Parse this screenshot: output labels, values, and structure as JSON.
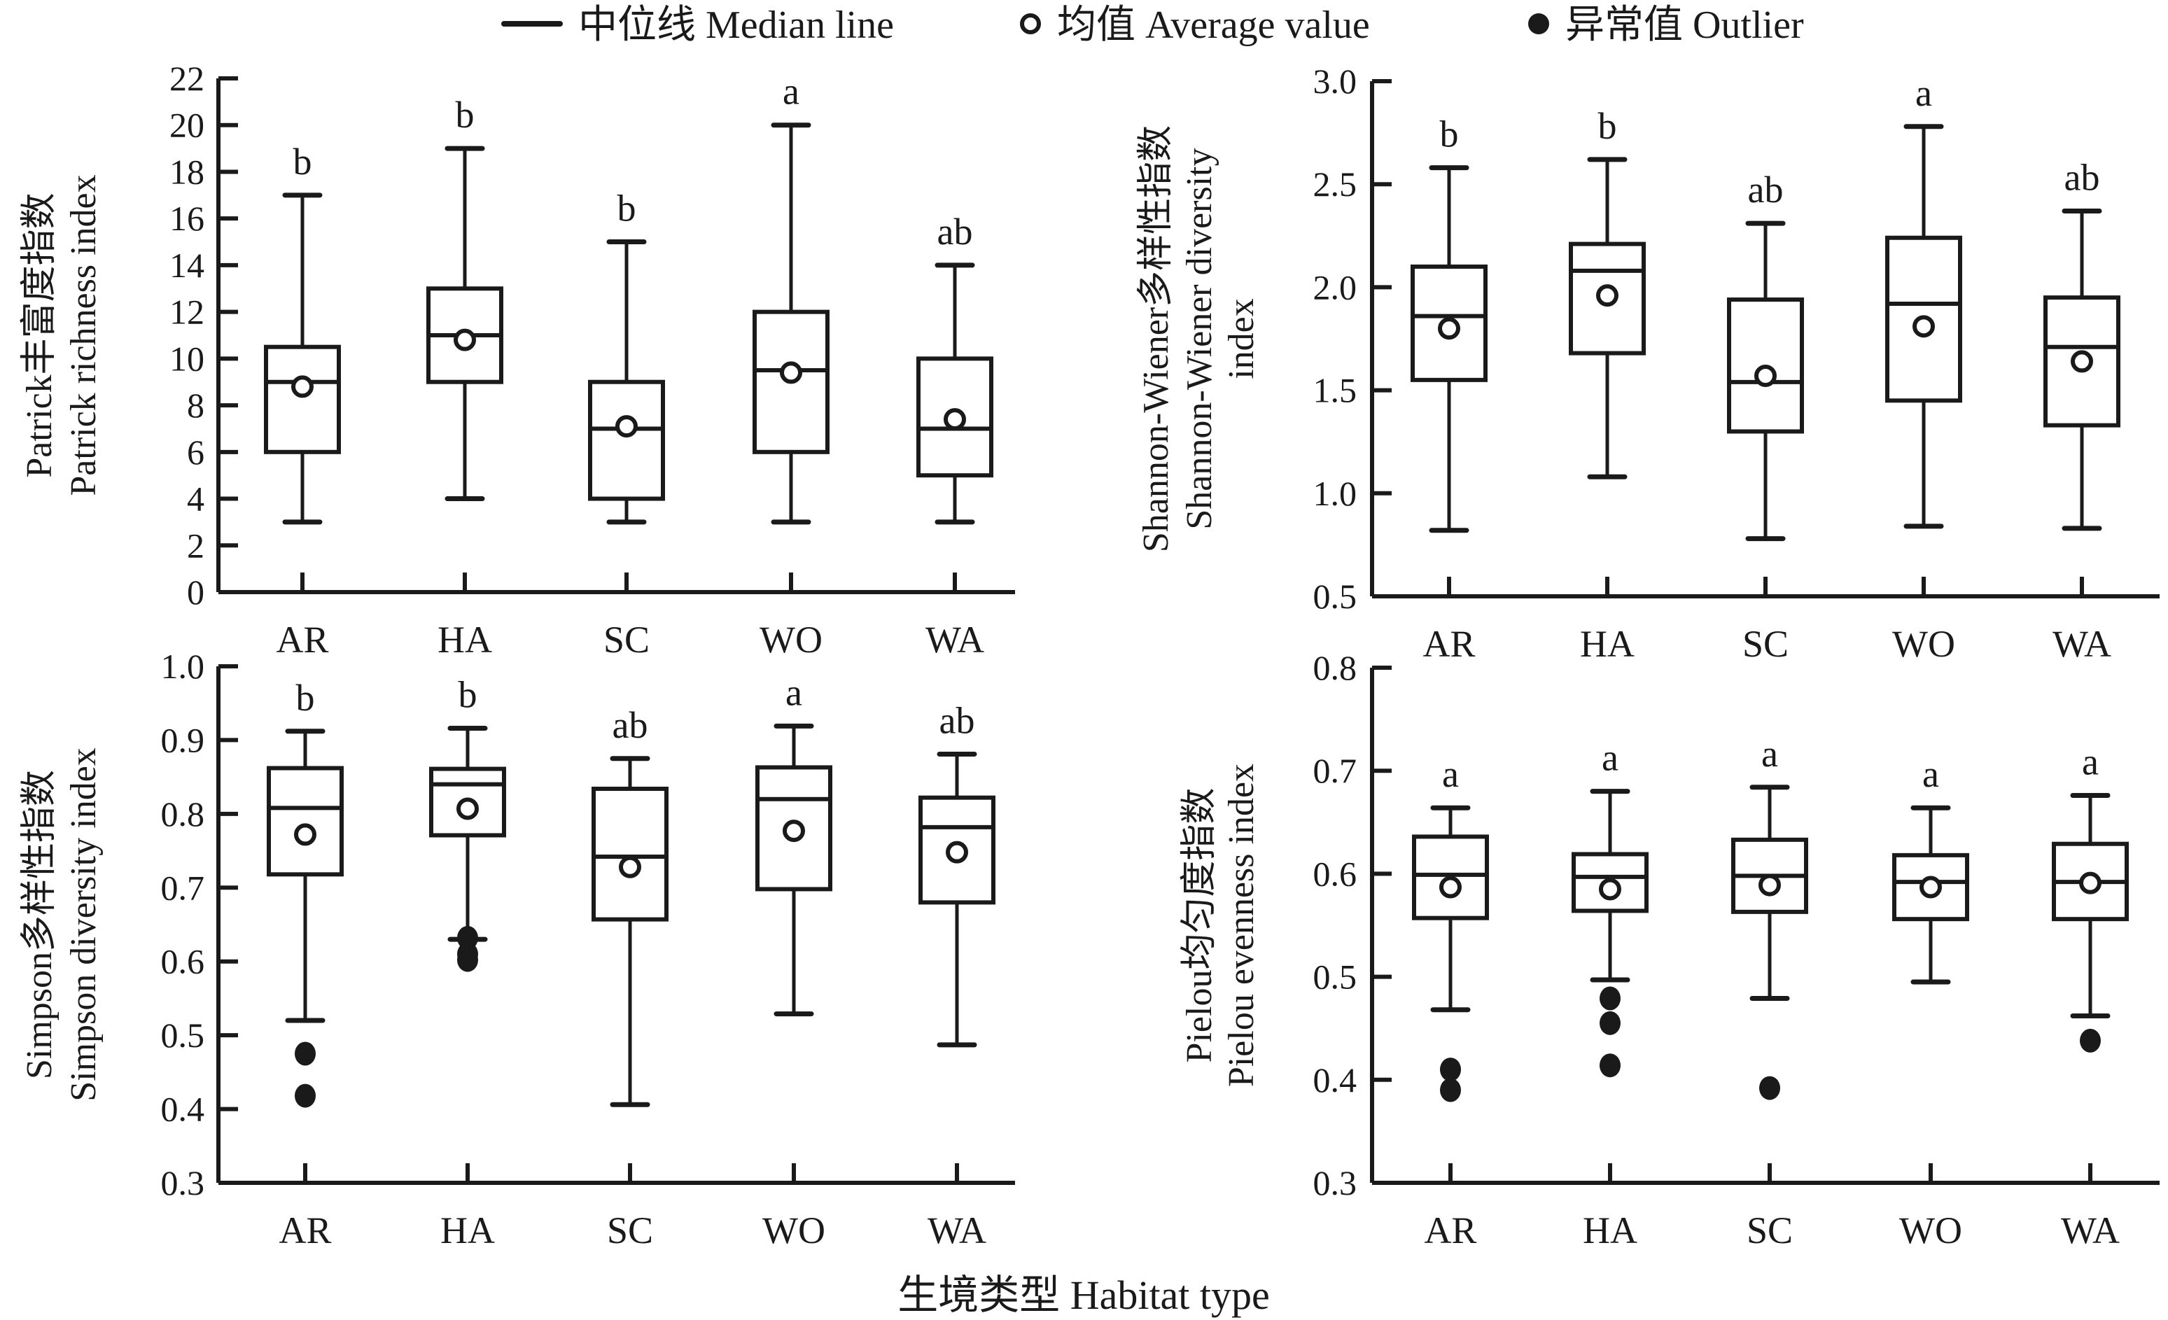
{
  "legend": {
    "median_label": "中位线 Median line",
    "mean_label": "均值 Average value",
    "outlier_label": "异常值 Outlier"
  },
  "x_title": "生境类型 Habitat type",
  "chart_data": [
    {
      "type": "box",
      "id": "patrick",
      "ylabel_cn": "Patrick丰富度指数",
      "ylabel_en": "Patrick richness index",
      "ylim": [
        0,
        22
      ],
      "yticks": [
        0,
        2,
        4,
        6,
        8,
        10,
        12,
        14,
        16,
        18,
        20,
        22
      ],
      "ytick_labels": [
        "0",
        "2",
        "4",
        "6",
        "8",
        "10",
        "12",
        "14",
        "16",
        "18",
        "20",
        "22"
      ],
      "categories": [
        "AR",
        "HA",
        "SC",
        "WO",
        "WA"
      ],
      "series": [
        {
          "category": "AR",
          "whisker_low": 3,
          "q1": 6,
          "median": 9,
          "q3": 10.5,
          "whisker_high": 17,
          "mean": 8.8,
          "outliers": [],
          "significance": "b"
        },
        {
          "category": "HA",
          "whisker_low": 4,
          "q1": 9,
          "median": 11,
          "q3": 13,
          "whisker_high": 19,
          "mean": 10.8,
          "outliers": [],
          "significance": "b"
        },
        {
          "category": "SC",
          "whisker_low": 3,
          "q1": 4,
          "median": 7,
          "q3": 9,
          "whisker_high": 15,
          "mean": 7.1,
          "outliers": [],
          "significance": "b"
        },
        {
          "category": "WO",
          "whisker_low": 3,
          "q1": 6,
          "median": 9.5,
          "q3": 12,
          "whisker_high": 20,
          "mean": 9.4,
          "outliers": [],
          "significance": "a"
        },
        {
          "category": "WA",
          "whisker_low": 3,
          "q1": 5,
          "median": 7,
          "q3": 10,
          "whisker_high": 14,
          "mean": 7.4,
          "outliers": [],
          "significance": "ab"
        }
      ]
    },
    {
      "type": "box",
      "id": "shannon",
      "ylabel_cn": "Shannon-Wiener多样性指数",
      "ylabel_en": "Shannon-Wiener diversity index",
      "ylim": [
        0.5,
        3.0
      ],
      "yticks": [
        0.5,
        1.0,
        1.5,
        2.0,
        2.5,
        3.0
      ],
      "ytick_labels": [
        "0.5",
        "1.0",
        "1.5",
        "2.0",
        "2.5",
        "3.0"
      ],
      "categories": [
        "AR",
        "HA",
        "SC",
        "WO",
        "WA"
      ],
      "series": [
        {
          "category": "AR",
          "whisker_low": 0.82,
          "q1": 1.55,
          "median": 1.86,
          "q3": 2.1,
          "whisker_high": 2.58,
          "mean": 1.8,
          "outliers": [],
          "significance": "b"
        },
        {
          "category": "HA",
          "whisker_low": 1.08,
          "q1": 1.68,
          "median": 2.08,
          "q3": 2.21,
          "whisker_high": 2.62,
          "mean": 1.96,
          "outliers": [],
          "significance": "b"
        },
        {
          "category": "SC",
          "whisker_low": 0.78,
          "q1": 1.3,
          "median": 1.54,
          "q3": 1.94,
          "whisker_high": 2.31,
          "mean": 1.57,
          "outliers": [],
          "significance": "ab"
        },
        {
          "category": "WO",
          "whisker_low": 0.84,
          "q1": 1.45,
          "median": 1.92,
          "q3": 2.24,
          "whisker_high": 2.78,
          "mean": 1.81,
          "outliers": [],
          "significance": "a"
        },
        {
          "category": "WA",
          "whisker_low": 0.83,
          "q1": 1.33,
          "median": 1.71,
          "q3": 1.95,
          "whisker_high": 2.37,
          "mean": 1.64,
          "outliers": [],
          "significance": "ab"
        }
      ]
    },
    {
      "type": "box",
      "id": "simpson",
      "ylabel_cn": "Simpson多样性指数",
      "ylabel_en": "Simpson diversity index",
      "ylim": [
        0.3,
        1.0
      ],
      "yticks": [
        0.3,
        0.4,
        0.5,
        0.6,
        0.7,
        0.8,
        0.9,
        1.0
      ],
      "ytick_labels": [
        "0.3",
        "0.4",
        "0.5",
        "0.6",
        "0.7",
        "0.8",
        "0.9",
        "1.0"
      ],
      "categories": [
        "AR",
        "HA",
        "SC",
        "WO",
        "WA"
      ],
      "series": [
        {
          "category": "AR",
          "whisker_low": 0.52,
          "q1": 0.718,
          "median": 0.808,
          "q3": 0.862,
          "whisker_high": 0.912,
          "mean": 0.772,
          "outliers": [
            0.475,
            0.418
          ],
          "significance": "b"
        },
        {
          "category": "HA",
          "whisker_low": 0.63,
          "q1": 0.771,
          "median": 0.84,
          "q3": 0.861,
          "whisker_high": 0.916,
          "mean": 0.807,
          "outliers": [
            0.632,
            0.61,
            0.602
          ],
          "significance": "b"
        },
        {
          "category": "SC",
          "whisker_low": 0.406,
          "q1": 0.657,
          "median": 0.742,
          "q3": 0.834,
          "whisker_high": 0.875,
          "mean": 0.728,
          "outliers": [],
          "significance": "ab"
        },
        {
          "category": "WO",
          "whisker_low": 0.529,
          "q1": 0.698,
          "median": 0.82,
          "q3": 0.863,
          "whisker_high": 0.919,
          "mean": 0.777,
          "outliers": [],
          "significance": "a"
        },
        {
          "category": "WA",
          "whisker_low": 0.487,
          "q1": 0.68,
          "median": 0.782,
          "q3": 0.822,
          "whisker_high": 0.881,
          "mean": 0.748,
          "outliers": [],
          "significance": "ab"
        }
      ]
    },
    {
      "type": "box",
      "id": "pielou",
      "ylabel_cn": "Pielou均匀度指数",
      "ylabel_en": "Pielou evenness index",
      "ylim": [
        0.3,
        0.8
      ],
      "yticks": [
        0.3,
        0.4,
        0.5,
        0.6,
        0.7,
        0.8
      ],
      "ytick_labels": [
        "0.3",
        "0.4",
        "0.5",
        "0.6",
        "0.7",
        "0.8"
      ],
      "categories": [
        "AR",
        "HA",
        "SC",
        "WO",
        "WA"
      ],
      "series": [
        {
          "category": "AR",
          "whisker_low": 0.468,
          "q1": 0.557,
          "median": 0.599,
          "q3": 0.636,
          "whisker_high": 0.664,
          "mean": 0.587,
          "outliers": [
            0.41,
            0.39
          ],
          "significance": "a"
        },
        {
          "category": "HA",
          "whisker_low": 0.497,
          "q1": 0.564,
          "median": 0.597,
          "q3": 0.619,
          "whisker_high": 0.68,
          "mean": 0.585,
          "outliers": [
            0.479,
            0.455,
            0.414
          ],
          "significance": "a"
        },
        {
          "category": "SC",
          "whisker_low": 0.479,
          "q1": 0.563,
          "median": 0.598,
          "q3": 0.633,
          "whisker_high": 0.684,
          "mean": 0.589,
          "outliers": [
            0.392
          ],
          "significance": "a"
        },
        {
          "category": "WO",
          "whisker_low": 0.495,
          "q1": 0.556,
          "median": 0.592,
          "q3": 0.618,
          "whisker_high": 0.664,
          "mean": 0.587,
          "outliers": [],
          "significance": "a"
        },
        {
          "category": "WA",
          "whisker_low": 0.462,
          "q1": 0.556,
          "median": 0.592,
          "q3": 0.629,
          "whisker_high": 0.676,
          "mean": 0.591,
          "outliers": [
            0.438
          ],
          "significance": "a"
        }
      ]
    }
  ]
}
